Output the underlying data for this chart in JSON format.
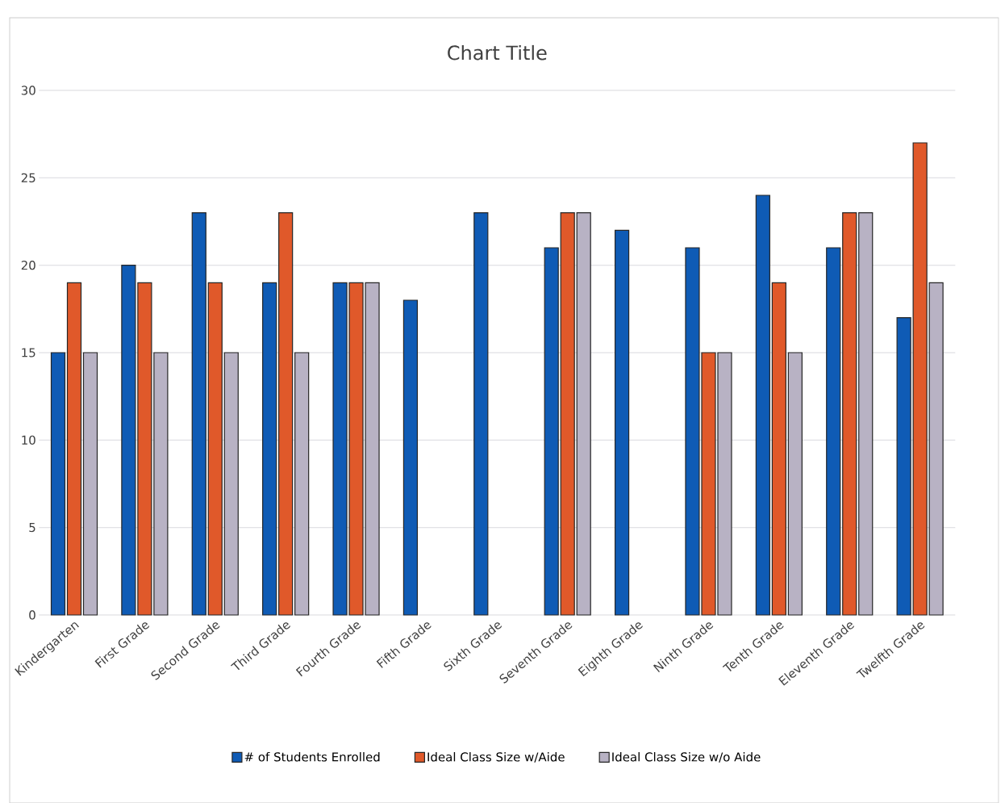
{
  "chart_data": {
    "type": "bar",
    "title": "Chart Title",
    "categories": [
      "Kindergarten",
      "First Grade",
      "Second Grade",
      "Third Grade",
      "Fourth Grade",
      "Fifth Grade",
      "Sixth Grade",
      "Seventh Grade",
      "Eighth Grade",
      "Ninth Grade",
      "Tenth Grade",
      "Eleventh Grade",
      "Twelfth Grade"
    ],
    "series": [
      {
        "name": "# of Students Enrolled",
        "color": "#0f5bb5",
        "values": [
          15,
          20,
          23,
          19,
          19,
          18,
          23,
          21,
          22,
          21,
          24,
          21,
          17
        ]
      },
      {
        "name": "Ideal Class Size w/Aide",
        "color": "#e0592a",
        "values": [
          19,
          19,
          19,
          23,
          19,
          null,
          null,
          23,
          null,
          15,
          19,
          23,
          27
        ]
      },
      {
        "name": "Ideal Class Size w/o Aide",
        "color": "#b8b2c4",
        "values": [
          15,
          15,
          15,
          15,
          19,
          null,
          null,
          23,
          null,
          15,
          15,
          23,
          19
        ]
      }
    ],
    "ylim": [
      0,
      30
    ],
    "yticks": [
      0,
      5,
      10,
      15,
      20,
      25,
      30
    ],
    "grid": "y",
    "legend": "bottom"
  }
}
